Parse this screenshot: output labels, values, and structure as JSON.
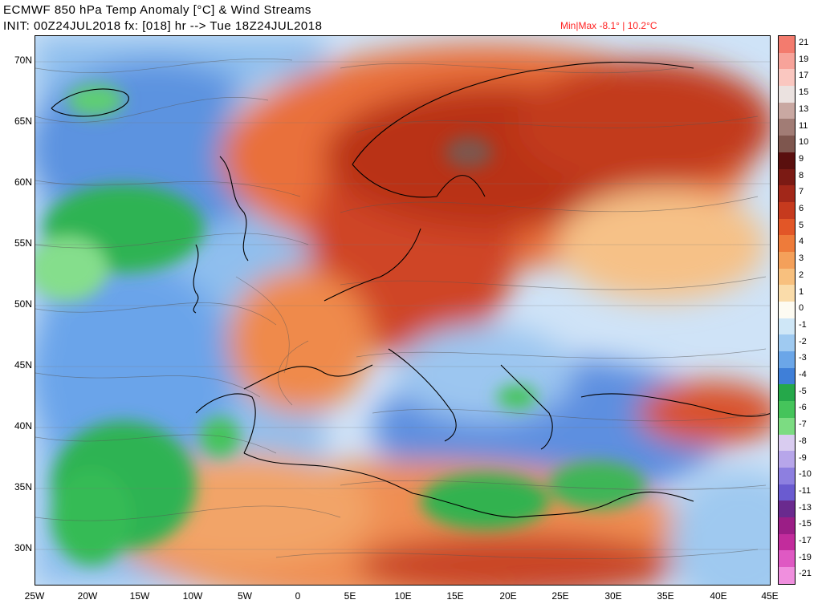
{
  "header": {
    "title": "ECMWF 850 hPa Temp Anomaly [°C] & Wind Streams",
    "init": "INIT: 00Z24JUL2018 fx: [018] hr --> Tue 18Z24JUL2018",
    "minmax": "Min|Max -8.1° | 10.2°C"
  },
  "map": {
    "lat_labels": [
      "70N",
      "65N",
      "60N",
      "55N",
      "50N",
      "45N",
      "40N",
      "35N",
      "30N"
    ],
    "lon_labels": [
      "25W",
      "20W",
      "15W",
      "10W",
      "5W",
      "0",
      "5E",
      "10E",
      "15E",
      "20E",
      "25E",
      "30E",
      "35E",
      "40E",
      "45E"
    ]
  },
  "legend": {
    "labels": [
      "21",
      "19",
      "17",
      "15",
      "13",
      "11",
      "10",
      "9",
      "8",
      "7",
      "6",
      "5",
      "4",
      "3",
      "2",
      "1",
      "0",
      "-1",
      "-2",
      "-3",
      "-4",
      "-5",
      "-6",
      "-7",
      "-8",
      "-9",
      "-10",
      "-11",
      "-13",
      "-15",
      "-17",
      "-19",
      "-21"
    ],
    "colors": [
      "#f37b6e",
      "#f7a39a",
      "#fac7c0",
      "#ebe2e0",
      "#c9a8a2",
      "#a17c75",
      "#7e564e",
      "#5a0f0e",
      "#7b1a14",
      "#a22719",
      "#c63a1e",
      "#e25627",
      "#ee7b3a",
      "#f4a05a",
      "#f8c07e",
      "#fadcaa",
      "#fdfbf2",
      "#cfe7f7",
      "#9fcaf1",
      "#6ba6e8",
      "#3f7fd8",
      "#25a84a",
      "#45c45b",
      "#7cdc82",
      "#d9ccf0",
      "#b7a6ea",
      "#8d7fe0",
      "#6a5bd0",
      "#6a2a8e",
      "#9b1e86",
      "#c22c9c",
      "#df59c3",
      "#f08fde"
    ]
  }
}
